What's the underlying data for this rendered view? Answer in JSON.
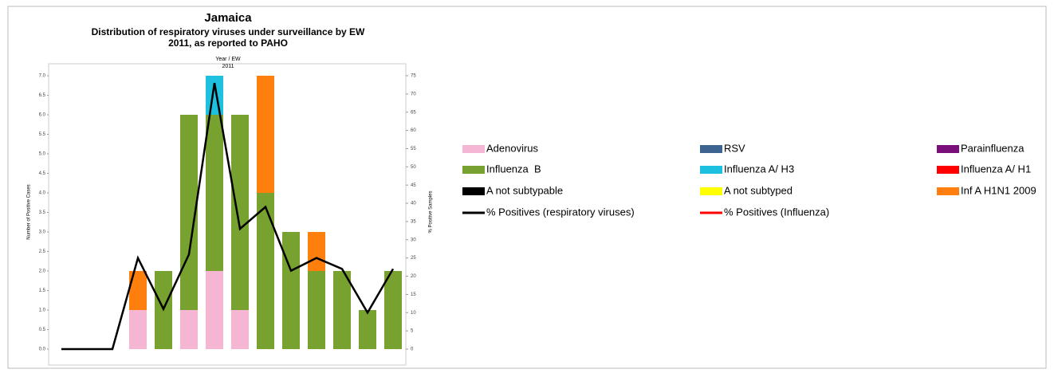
{
  "chart_data": {
    "type": "bar",
    "stacked": true,
    "title": "Jamaica",
    "subtitle": "Distribution of respiratory viruses under surveillance by EW",
    "subtitle2": "2011, as reported to PAHO",
    "x_label": "Year / EW",
    "x_group": "2011",
    "y_label": "Number of Positive Cases",
    "y2_label": "% Positive Samples",
    "categories": [
      null,
      null,
      null,
      null,
      null,
      null,
      null,
      null,
      null,
      null,
      null,
      null,
      null,
      null
    ],
    "ylim": [
      0,
      7
    ],
    "yticks": [
      {
        "value": 0,
        "label": "0.0"
      },
      {
        "value": 0.5,
        "label": "0.5"
      },
      {
        "value": 1,
        "label": "1.0"
      },
      {
        "value": 1.5,
        "label": "1.5"
      },
      {
        "value": 2,
        "label": "2.0"
      },
      {
        "value": 2.5,
        "label": "2.5"
      },
      {
        "value": 3,
        "label": "3.0"
      },
      {
        "value": 3.5,
        "label": "3.5"
      },
      {
        "value": 4,
        "label": "4.0"
      },
      {
        "value": 4.5,
        "label": "4.5"
      },
      {
        "value": 5,
        "label": "5.0"
      },
      {
        "value": 5.5,
        "label": "5.5"
      },
      {
        "value": 6,
        "label": "6.0"
      },
      {
        "value": 6.5,
        "label": "6.5"
      },
      {
        "value": 7,
        "label": "7.0"
      }
    ],
    "y2lim": [
      0,
      75
    ],
    "y2ticks": [
      0,
      5,
      10,
      15,
      20,
      25,
      30,
      35,
      40,
      45,
      50,
      55,
      60,
      65,
      70,
      75
    ],
    "series": [
      {
        "name": "Adenovirus",
        "color": "#f4b6d2",
        "values": [
          0,
          0,
          0,
          1,
          0,
          1,
          2,
          1,
          0,
          0,
          0,
          0,
          0,
          0
        ]
      },
      {
        "name": "RSV",
        "color": "#3d6491",
        "values": [
          0,
          0,
          0,
          0,
          0,
          0,
          0,
          0,
          0,
          0,
          0,
          0,
          0,
          0
        ]
      },
      {
        "name": "Parainfluenza",
        "color": "#7a0f7a",
        "values": [
          0,
          0,
          0,
          0,
          0,
          0,
          0,
          0,
          0,
          0,
          0,
          0,
          0,
          0
        ]
      },
      {
        "name": "Influenza  B",
        "color": "#77a22f",
        "values": [
          0,
          0,
          0,
          0,
          2,
          5,
          4,
          5,
          4,
          3,
          2,
          2,
          1,
          2
        ]
      },
      {
        "name": "Influenza A/ H3",
        "color": "#1ec0e0",
        "values": [
          0,
          0,
          0,
          0,
          0,
          0,
          1,
          0,
          0,
          0,
          0,
          0,
          0,
          0
        ]
      },
      {
        "name": "Influenza A/ H1",
        "color": "#ff0000",
        "values": [
          0,
          0,
          0,
          0,
          0,
          0,
          0,
          0,
          0,
          0,
          0,
          0,
          0,
          0
        ]
      },
      {
        "name": "A not subtypable",
        "color": "#000000",
        "values": [
          0,
          0,
          0,
          0,
          0,
          0,
          0,
          0,
          0,
          0,
          0,
          0,
          0,
          0
        ]
      },
      {
        "name": "A not subtyped",
        "color": "#ffff00",
        "values": [
          0,
          0,
          0,
          0,
          0,
          0,
          0,
          0,
          0,
          0,
          0,
          0,
          0,
          0
        ]
      },
      {
        "name": "Inf A H1N1 2009",
        "color": "#ff7f0e",
        "values": [
          0,
          0,
          0,
          1,
          0,
          0,
          0,
          0,
          3,
          0,
          1,
          0,
          0,
          0
        ]
      },
      {
        "name": "% Positives (respiratory viruses)",
        "type": "line",
        "axis": "y2",
        "color": "#000000",
        "values": [
          0,
          0,
          0,
          25,
          11,
          26,
          73,
          33,
          39,
          21.5,
          25,
          22,
          10,
          22
        ]
      },
      {
        "name": "% Positives (Influenza)",
        "type": "line",
        "axis": "y2",
        "color": "#ff0000",
        "values": [
          null,
          null,
          null,
          null,
          null,
          null,
          null,
          null,
          null,
          null,
          null,
          null,
          null,
          null
        ]
      }
    ]
  }
}
